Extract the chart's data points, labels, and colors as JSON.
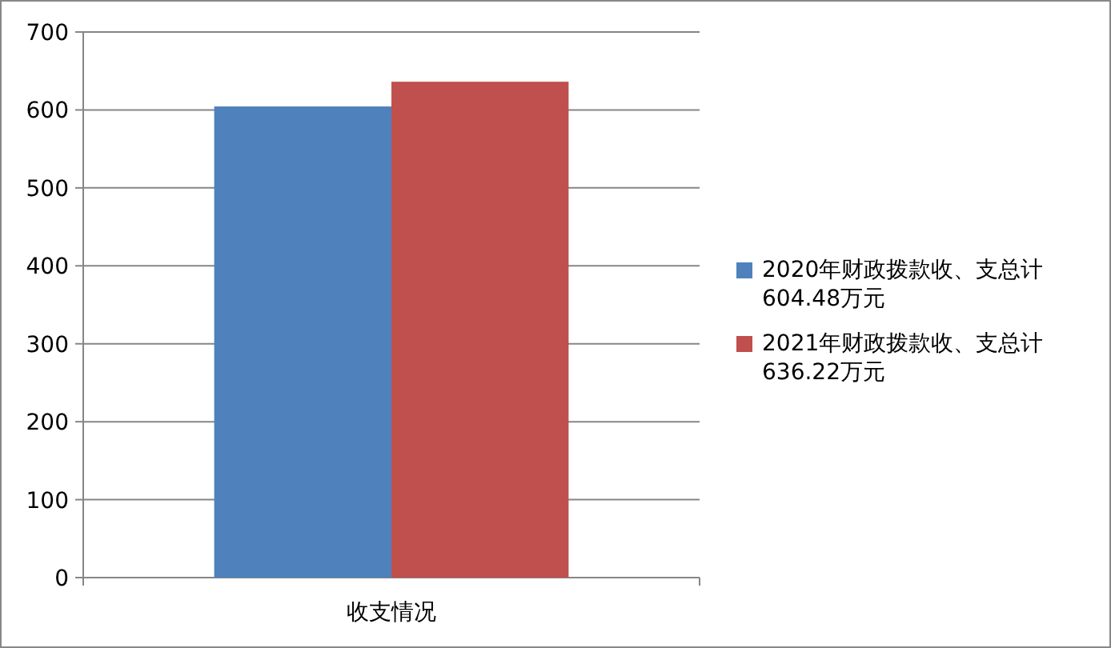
{
  "chart_data": {
    "type": "bar",
    "categories": [
      "收支情况"
    ],
    "series": [
      {
        "name": "2020年财政拨款收、支总计604.48万元",
        "color": "#4f81bd",
        "values": [
          604.48
        ]
      },
      {
        "name": "2021年财政拨款收、支总计636.22万元",
        "color": "#c0504d",
        "values": [
          636.22
        ]
      }
    ],
    "ylim": [
      0,
      700
    ],
    "yticks": [
      0,
      100,
      200,
      300,
      400,
      500,
      600,
      700
    ],
    "grid": "y",
    "legend": "right"
  }
}
